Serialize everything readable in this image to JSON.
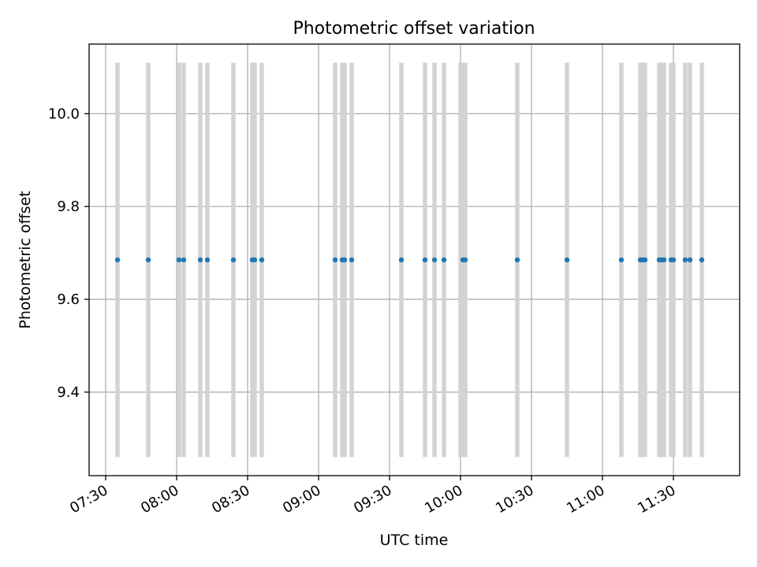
{
  "chart_data": {
    "type": "scatter",
    "title": "Photometric offset variation",
    "xlabel": "UTC time",
    "ylabel": "Photometric offset",
    "x_axis_type": "time",
    "xlim": [
      "07:23",
      "11:58"
    ],
    "ylim": [
      9.22,
      10.15
    ],
    "x_ticks": [
      "07:30",
      "08:00",
      "08:30",
      "09:00",
      "09:30",
      "10:00",
      "10:30",
      "11:00",
      "11:30"
    ],
    "y_ticks": [
      9.4,
      9.6,
      9.8,
      10.0
    ],
    "y_tick_labels": [
      "9.4",
      "9.6",
      "9.8",
      "10.0"
    ],
    "grid": true,
    "vertical_bands": {
      "color": "#d3d3d3",
      "y_range": [
        9.26,
        10.11
      ],
      "times": [
        "07:35",
        "07:48",
        "08:01",
        "08:03",
        "08:10",
        "08:13",
        "08:24",
        "08:32",
        "08:33",
        "08:36",
        "09:07",
        "09:10",
        "09:11",
        "09:14",
        "09:35",
        "09:45",
        "09:49",
        "09:53",
        "10:00",
        "10:01",
        "10:02",
        "10:24",
        "10:45",
        "11:08",
        "11:16",
        "11:17",
        "11:18",
        "11:24",
        "11:25",
        "11:26",
        "11:29",
        "11:30",
        "11:35",
        "11:37",
        "11:42"
      ]
    },
    "series": [
      {
        "color": "#1f77b4",
        "points": [
          {
            "x": "07:35",
            "y": 9.685
          },
          {
            "x": "07:48",
            "y": 9.685
          },
          {
            "x": "08:01",
            "y": 9.685
          },
          {
            "x": "08:03",
            "y": 9.685
          },
          {
            "x": "08:10",
            "y": 9.685
          },
          {
            "x": "08:13",
            "y": 9.685
          },
          {
            "x": "08:24",
            "y": 9.685
          },
          {
            "x": "08:32",
            "y": 9.685
          },
          {
            "x": "08:33",
            "y": 9.685
          },
          {
            "x": "08:36",
            "y": 9.685
          },
          {
            "x": "09:07",
            "y": 9.685
          },
          {
            "x": "09:10",
            "y": 9.685
          },
          {
            "x": "09:11",
            "y": 9.685
          },
          {
            "x": "09:14",
            "y": 9.685
          },
          {
            "x": "09:35",
            "y": 9.685
          },
          {
            "x": "09:45",
            "y": 9.685
          },
          {
            "x": "09:49",
            "y": 9.685
          },
          {
            "x": "09:53",
            "y": 9.685
          },
          {
            "x": "10:01",
            "y": 9.685
          },
          {
            "x": "10:02",
            "y": 9.685
          },
          {
            "x": "10:24",
            "y": 9.685
          },
          {
            "x": "10:45",
            "y": 9.685
          },
          {
            "x": "11:08",
            "y": 9.685
          },
          {
            "x": "11:16",
            "y": 9.685
          },
          {
            "x": "11:17",
            "y": 9.685
          },
          {
            "x": "11:18",
            "y": 9.685
          },
          {
            "x": "11:24",
            "y": 9.685
          },
          {
            "x": "11:25",
            "y": 9.685
          },
          {
            "x": "11:26",
            "y": 9.685
          },
          {
            "x": "11:29",
            "y": 9.685
          },
          {
            "x": "11:30",
            "y": 9.685
          },
          {
            "x": "11:35",
            "y": 9.685
          },
          {
            "x": "11:37",
            "y": 9.685
          },
          {
            "x": "11:42",
            "y": 9.685
          }
        ]
      }
    ]
  }
}
